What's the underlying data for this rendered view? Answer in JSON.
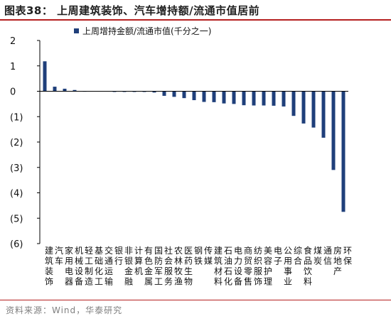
{
  "header": {
    "title": "图表38：  上周建筑装饰、汽车增持额/流通市值居前"
  },
  "footer": {
    "source": "资料来源：Wind，华泰研究"
  },
  "colors": {
    "bar": "#1f3f7a",
    "accent_rule": "#b51f1f"
  },
  "chart_data": {
    "type": "bar",
    "legend": "上周增持金额/流通市值(千分之一)",
    "legend_position": "top-left",
    "ylim": [
      -6,
      2
    ],
    "yticks": [
      {
        "value": 2,
        "label": "2"
      },
      {
        "value": 1,
        "label": "1"
      },
      {
        "value": 0,
        "label": "0"
      },
      {
        "value": -1,
        "label": "(1)"
      },
      {
        "value": -2,
        "label": "(2)"
      },
      {
        "value": -3,
        "label": "(3)"
      },
      {
        "value": -4,
        "label": "(4)"
      },
      {
        "value": -5,
        "label": "(5)"
      },
      {
        "value": -6,
        "label": "(6)"
      }
    ],
    "grid": false,
    "categories": [
      "建筑装饰",
      "汽车",
      "家用电器",
      "机械设备",
      "轻工制造",
      "基础化工",
      "交通运输",
      "银行",
      "非银金融",
      "计算机",
      "有色金属",
      "国防军工",
      "社会服务",
      "农林牧渔",
      "医药生物",
      "钢铁",
      "传媒",
      "建筑材料",
      "石油石化",
      "电力设备",
      "商贸零售",
      "纺织服饰",
      "美容护理",
      "电子",
      "公用事业",
      "综合",
      "食品饮料",
      "煤炭",
      "通信",
      "房地产",
      "环保"
    ],
    "values": [
      1.18,
      0.18,
      0.1,
      0.05,
      0.01,
      0.0,
      0.0,
      -0.01,
      -0.01,
      -0.01,
      -0.02,
      -0.05,
      -0.18,
      -0.22,
      -0.27,
      -0.35,
      -0.42,
      -0.43,
      -0.48,
      -0.5,
      -0.55,
      -0.56,
      -0.56,
      -0.57,
      -0.6,
      -0.97,
      -1.27,
      -1.43,
      -1.83,
      -3.1,
      -4.75
    ]
  }
}
